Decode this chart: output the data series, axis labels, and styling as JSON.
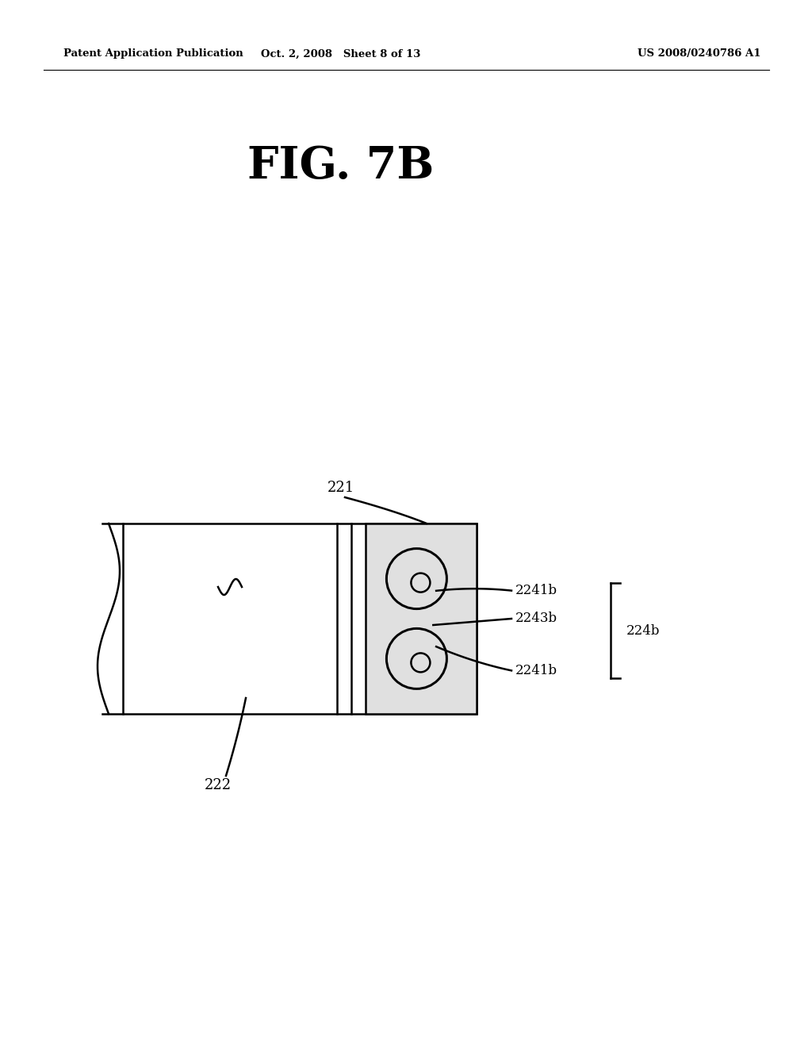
{
  "bg_color": "#ffffff",
  "header_left": "Patent Application Publication",
  "header_mid": "Oct. 2, 2008   Sheet 8 of 13",
  "header_right": "US 2008/0240786 A1",
  "fig_title": "FIG. 7B",
  "label_221": "221",
  "label_222": "222",
  "label_2241b_top": "2241b",
  "label_2243b": "2243b",
  "label_2241b_bot": "2241b",
  "label_224b": "224b",
  "line_color": "#000000",
  "shaded_color": "#e0e0e0",
  "linewidth": 1.8
}
